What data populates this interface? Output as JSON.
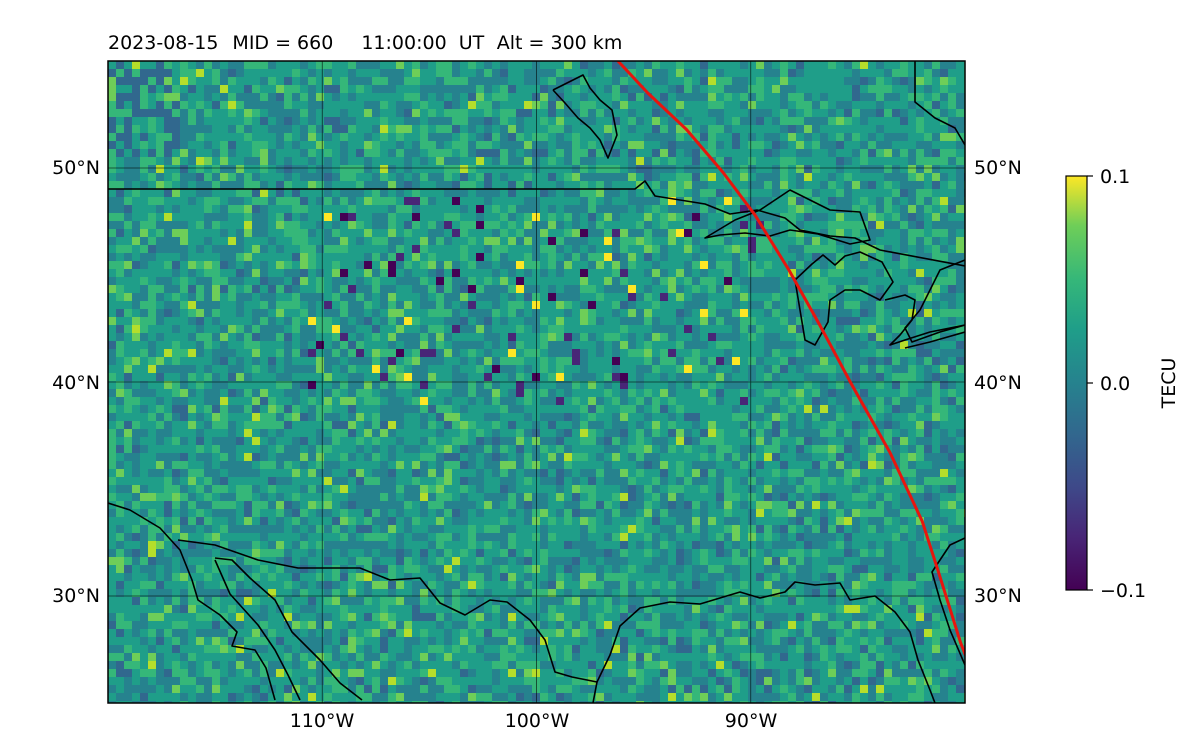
{
  "title": {
    "date": "2023-08-15",
    "mid": "MID = 660",
    "time": "11:00:00  UT",
    "alt": "Alt = 300 km"
  },
  "map": {
    "extent": {
      "lon_min": -120,
      "lon_max": -80,
      "lat_min": 25,
      "lat_max": 55
    },
    "gridlines": {
      "lon": [
        -110,
        -100,
        -90
      ],
      "lat": [
        30,
        40,
        50
      ]
    },
    "lon_labels": [
      "110°W",
      "100°W",
      "90°W"
    ],
    "lat_labels": [
      "30°N",
      "40°N",
      "50°N"
    ],
    "field_description_colors": {
      "background": "#2a8c8c",
      "coast": "#000000",
      "terminator": "#e8150e"
    }
  },
  "colorbar": {
    "label": "TECU",
    "ticks": [
      "0.1",
      "0.0",
      "−0.1"
    ],
    "vmin": -0.1,
    "vmax": 0.1
  },
  "terminator_line": {
    "color": "#e8150e",
    "lonlat": [
      [
        -96.2,
        55
      ],
      [
        -94.8,
        53.5
      ],
      [
        -93.0,
        51.8
      ],
      [
        -91.3,
        49.8
      ],
      [
        -89.8,
        47.8
      ],
      [
        -88.2,
        45.2
      ],
      [
        -86.8,
        42.7
      ],
      [
        -85.3,
        39.9
      ],
      [
        -83.5,
        36.7
      ],
      [
        -82.0,
        33.5
      ],
      [
        -81.2,
        31.0
      ],
      [
        -80.2,
        27.8
      ],
      [
        -79.1,
        25
      ]
    ]
  }
}
